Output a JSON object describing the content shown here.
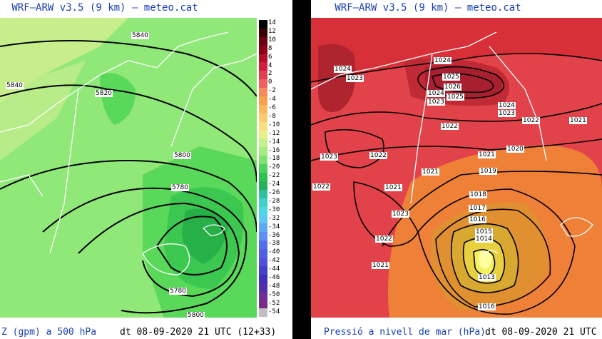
{
  "left": {
    "title": "WRF–ARW v3.5 (9 km) – meteo.cat",
    "footer_var": "Z (gpm) a 500 hPa",
    "footer_date": "dt 08-09-2020 21 UTC (12+33)",
    "contour_labels": [
      "5840",
      "5840",
      "5820",
      "5800",
      "5780",
      "5780",
      "5800"
    ],
    "colorbar": {
      "ticks": [
        "14",
        "12",
        "10",
        "8",
        "6",
        "4",
        "2",
        "0",
        "-2",
        "-4",
        "-6",
        "-8",
        "-10",
        "-12",
        "-14",
        "-16",
        "-18",
        "-20",
        "-22",
        "-24",
        "-26",
        "-28",
        "-30",
        "-32",
        "-34",
        "-36",
        "-38",
        "-40",
        "-42",
        "-44",
        "-46",
        "-48",
        "-50",
        "-52",
        "-54"
      ],
      "colors": [
        "#000000",
        "#3a0000",
        "#6a0010",
        "#8b0018",
        "#b0102a",
        "#d02040",
        "#e04050",
        "#f06060",
        "#f58a5a",
        "#f7a050",
        "#f8b860",
        "#f8cc70",
        "#f4e080",
        "#e8f08a",
        "#c8f090",
        "#a8ec80",
        "#80e070",
        "#50d060",
        "#30c050",
        "#28b060",
        "#30c0a0",
        "#40d0c8",
        "#50d8e0",
        "#60c8f0",
        "#60a8f0",
        "#6090f0",
        "#5070e8",
        "#5060e0",
        "#5050d8",
        "#4040c8",
        "#4030b8",
        "#5030a8",
        "#6a3098",
        "#7a2c88",
        "#c0c0c0"
      ]
    }
  },
  "right": {
    "title": "WRF–ARW v3.5 (9 km) – meteo.cat",
    "footer_var": "Pressió a nivell de mar (hPa)",
    "footer_date": "dt 08-09-2020 21 UTC",
    "contour_labels": [
      "1024",
      "1024",
      "1023",
      "1025",
      "1026",
      "1024",
      "1025",
      "1023",
      "1024",
      "1023",
      "1022",
      "1022",
      "1021",
      "1021",
      "1020",
      "1021",
      "1019",
      "1023",
      "1022",
      "1021",
      "1018",
      "1017",
      "1016",
      "1015",
      "1014",
      "1013",
      "1016",
      "1022",
      "1023",
      "1022",
      "1021"
    ]
  }
}
